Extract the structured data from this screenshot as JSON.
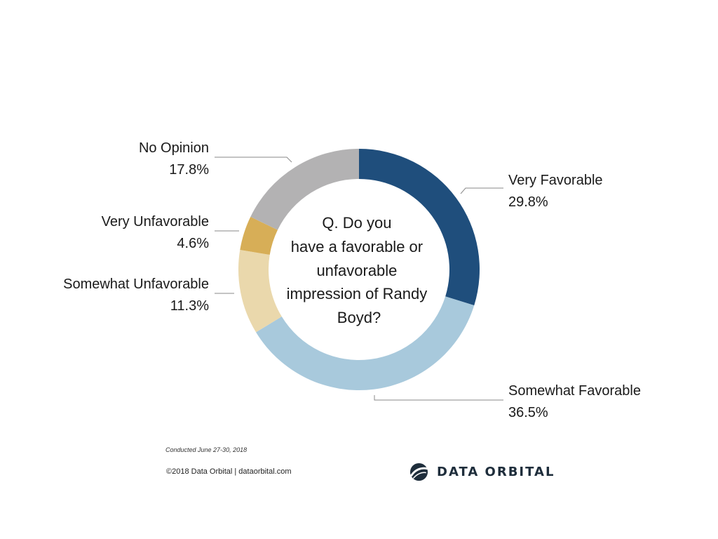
{
  "chart_data": {
    "type": "pie",
    "donut": true,
    "start": "top",
    "direction": "clockwise",
    "title_lines": [
      "Q. Do you",
      "have a favorable or",
      "unfavorable",
      "impression of Randy",
      "Boyd?"
    ],
    "slices": [
      {
        "label": "Very Favorable",
        "value": 29.8,
        "color": "#1f4e7c"
      },
      {
        "label": "Somewhat Favorable",
        "value": 36.5,
        "color": "#a8c9dc"
      },
      {
        "label": "Somewhat Unfavorable",
        "value": 11.3,
        "color": "#ead8ac"
      },
      {
        "label": "Very Unfavorable",
        "value": 4.6,
        "color": "#d7ae57"
      },
      {
        "label": "No Opinion",
        "value": 17.8,
        "color": "#b3b2b3"
      }
    ]
  },
  "footer": {
    "note": "Conducted June 27-30, 2018",
    "copyright": "©2018 Data Orbital | dataorbital.com"
  },
  "logo": {
    "text": "DATA ORBITAL",
    "icon": "orbit-logo-icon",
    "color": "#1e2d3b"
  }
}
